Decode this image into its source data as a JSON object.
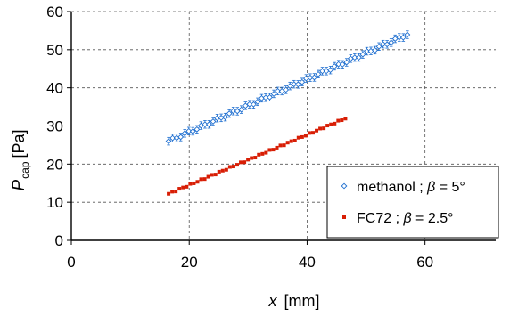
{
  "chart_data": {
    "type": "scatter",
    "xlabel_var": "x",
    "xlabel_unit": "[mm]",
    "ylabel_var": "P",
    "ylabel_sub": "cap",
    "ylabel_unit": "[Pa]",
    "xlim": [
      0,
      72
    ],
    "ylim": [
      0,
      60
    ],
    "xticks": [
      0,
      20,
      40,
      60
    ],
    "yticks": [
      0,
      10,
      20,
      30,
      40,
      50,
      60
    ],
    "grid": "vertical-and-horizontal-dashed",
    "legend_placement": "bottom-right",
    "series": [
      {
        "legend_prefix": "methanol ; ",
        "legend_beta": "β",
        "legend_suffix": " = 5°",
        "marker": "open-diamond-with-errorbars",
        "color": "#1f6fd0",
        "x_start": 16.5,
        "x_end": 57,
        "y_start": 26.0,
        "y_end": 54.0,
        "n_points": 60,
        "error": 1.0
      },
      {
        "legend_prefix": "FC72 ; ",
        "legend_beta": "β",
        "legend_suffix": " = 2.5°",
        "marker": "filled-square",
        "color": "#d81e05",
        "x_start": 16.5,
        "x_end": 46.5,
        "y_start": 12.2,
        "y_end": 32.0,
        "n_points": 50,
        "error": 0
      }
    ]
  }
}
